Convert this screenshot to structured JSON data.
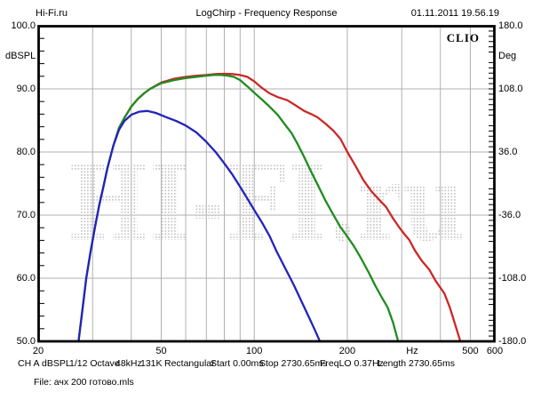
{
  "header": {
    "app_site": "Hi-Fi.ru",
    "title": "LogChirp - Frequency Response",
    "datetime": "01.11.2011 19.56.19"
  },
  "plot": {
    "brand": "CLIO",
    "watermark": "HI-FI.ru",
    "left_axis": {
      "unit": "dBSPL",
      "labels": [
        "100.0",
        "90.0",
        "80.0",
        "70.0",
        "60.0",
        "50.0"
      ],
      "minor_step_db": 2
    },
    "right_axis": {
      "unit": "Deg",
      "labels": [
        "180.0",
        "108.0",
        "36.0",
        "-36.0",
        "-108.0",
        "-180.0"
      ],
      "minor_step_deg": 6
    },
    "x_axis": {
      "unit": "Hz",
      "tick_labels": [
        {
          "f": 20,
          "t": "20"
        },
        {
          "f": 50,
          "t": "50"
        },
        {
          "f": 100,
          "t": "100"
        },
        {
          "f": 200,
          "t": "200"
        },
        {
          "f": 500,
          "t": "500"
        },
        {
          "f": 600,
          "t": "600"
        }
      ],
      "gridline_freqs": [
        30,
        40,
        50,
        60,
        70,
        80,
        90,
        100,
        200,
        300,
        400,
        500
      ]
    },
    "colors": {
      "grid": "#b0b0b0",
      "frame": "#000000",
      "watermark_dot": "#c6c6c6",
      "text": "#000000"
    }
  },
  "chart_data": {
    "type": "line",
    "title": "LogChirp - Frequency Response",
    "xlabel": "Hz",
    "ylabel": "dBSPL",
    "y2label": "Deg",
    "xscale": "log",
    "xlim": [
      20,
      600
    ],
    "ylim": [
      50,
      100
    ],
    "y2lim": [
      -180,
      180
    ],
    "grid": true,
    "legend": false,
    "series": [
      {
        "name": "curve-red",
        "color": "#cc2727",
        "points": [
          [
            36.5,
            83.8
          ],
          [
            38,
            85.4
          ],
          [
            40,
            87.2
          ],
          [
            42,
            88.4
          ],
          [
            44,
            89.3
          ],
          [
            46,
            90
          ],
          [
            50,
            91
          ],
          [
            55,
            91.6
          ],
          [
            60,
            91.9
          ],
          [
            65,
            92.1
          ],
          [
            70,
            92.2
          ],
          [
            75,
            92.35
          ],
          [
            80,
            92.4
          ],
          [
            85,
            92.35
          ],
          [
            90,
            92.2
          ],
          [
            95,
            91.9
          ],
          [
            100,
            91.2
          ],
          [
            105,
            90.3
          ],
          [
            112,
            89.3
          ],
          [
            119,
            88.7
          ],
          [
            128,
            88.2
          ],
          [
            136,
            87.4
          ],
          [
            145,
            86.5
          ],
          [
            153,
            86
          ],
          [
            160,
            85.5
          ],
          [
            170,
            84.5
          ],
          [
            180,
            83.4
          ],
          [
            190,
            82.1
          ],
          [
            200,
            80
          ],
          [
            212,
            77.9
          ],
          [
            225,
            75.6
          ],
          [
            239,
            73.8
          ],
          [
            253,
            72.5
          ],
          [
            267,
            71.3
          ],
          [
            281,
            69.5
          ],
          [
            295,
            68
          ],
          [
            307,
            66.9
          ],
          [
            317,
            66.1
          ],
          [
            331,
            64.4
          ],
          [
            349,
            62.7
          ],
          [
            368,
            61.4
          ],
          [
            386,
            59.6
          ],
          [
            400,
            58.5
          ],
          [
            412,
            57.6
          ],
          [
            429,
            55.4
          ],
          [
            447,
            52.6
          ],
          [
            464,
            50
          ]
        ]
      },
      {
        "name": "curve-green",
        "color": "#1f8c1f",
        "points": [
          [
            27,
            50
          ],
          [
            27.8,
            55
          ],
          [
            28.6,
            60
          ],
          [
            29.5,
            64
          ],
          [
            30.5,
            68
          ],
          [
            31.5,
            71.5
          ],
          [
            32.5,
            74.5
          ],
          [
            33.5,
            77.5
          ],
          [
            35,
            81
          ],
          [
            36.5,
            83.8
          ],
          [
            38,
            85.4
          ],
          [
            40,
            87.2
          ],
          [
            42,
            88.4
          ],
          [
            44,
            89.3
          ],
          [
            46,
            90
          ],
          [
            50,
            90.9
          ],
          [
            55,
            91.4
          ],
          [
            60,
            91.7
          ],
          [
            65,
            91.9
          ],
          [
            70,
            92.1
          ],
          [
            74,
            92.2
          ],
          [
            78,
            92.2
          ],
          [
            82,
            92.1
          ],
          [
            86,
            91.9
          ],
          [
            90,
            91.4
          ],
          [
            95,
            90.4
          ],
          [
            100,
            89.4
          ],
          [
            106,
            88.3
          ],
          [
            112,
            87.2
          ],
          [
            119,
            85.9
          ],
          [
            126,
            84.3
          ],
          [
            132,
            83
          ],
          [
            138,
            81.3
          ],
          [
            145,
            79.2
          ],
          [
            152,
            77.1
          ],
          [
            160,
            74.9
          ],
          [
            170,
            72.3
          ],
          [
            180,
            70.1
          ],
          [
            190,
            68.1
          ],
          [
            200,
            66.6
          ],
          [
            210,
            65.1
          ],
          [
            222,
            63.1
          ],
          [
            234,
            61
          ],
          [
            247,
            58.7
          ],
          [
            259,
            56.9
          ],
          [
            270,
            55.4
          ],
          [
            281,
            53
          ],
          [
            292,
            50
          ]
        ]
      },
      {
        "name": "curve-blue",
        "color": "#2323bb",
        "points": [
          [
            27,
            50
          ],
          [
            27.8,
            55
          ],
          [
            28.6,
            60
          ],
          [
            29.5,
            64
          ],
          [
            30.5,
            68
          ],
          [
            31.5,
            71.5
          ],
          [
            32.5,
            74.5
          ],
          [
            33.5,
            77.5
          ],
          [
            35,
            81
          ],
          [
            36.5,
            83.5
          ],
          [
            38,
            84.9
          ],
          [
            40,
            85.9
          ],
          [
            42.5,
            86.4
          ],
          [
            45,
            86.5
          ],
          [
            48,
            86.2
          ],
          [
            52,
            85.5
          ],
          [
            56,
            84.9
          ],
          [
            60,
            84.2
          ],
          [
            65,
            83.1
          ],
          [
            70,
            81.6
          ],
          [
            75,
            80
          ],
          [
            80,
            78.2
          ],
          [
            85,
            76.4
          ],
          [
            90,
            74.5
          ],
          [
            95,
            72.6
          ],
          [
            100,
            70.8
          ],
          [
            106,
            68.8
          ],
          [
            112,
            66.7
          ],
          [
            118,
            64.3
          ],
          [
            125,
            61.9
          ],
          [
            134,
            59
          ],
          [
            142,
            56.4
          ],
          [
            150,
            53.9
          ],
          [
            157,
            51.8
          ],
          [
            163,
            50
          ]
        ]
      }
    ]
  },
  "status_bar": {
    "items": [
      "CH A",
      "dBSPL",
      "1/12 Octave",
      "48kHz",
      "131K",
      "Rectangular",
      "Start 0.00ms",
      "Stop 2730.65ms",
      "FreqLO 0.37Hz",
      "Length 2730.65ms"
    ]
  },
  "file_line": "File: ачх 200 готово.mls"
}
